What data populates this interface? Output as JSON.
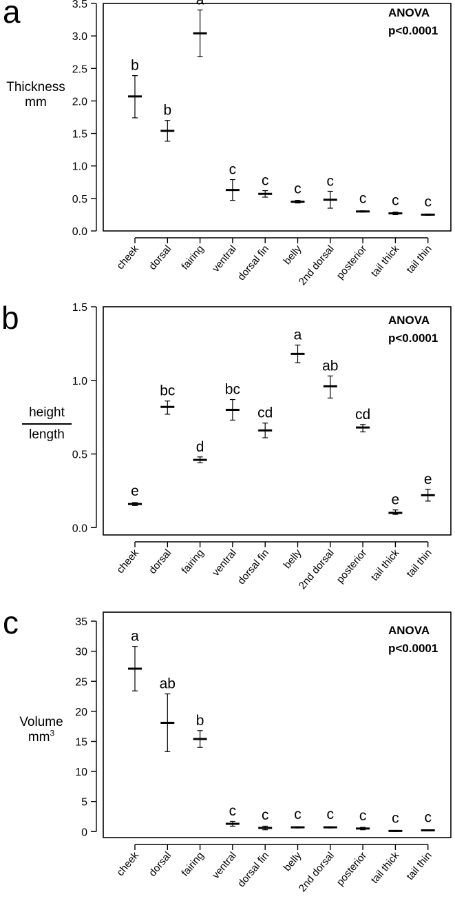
{
  "chart_data": [
    {
      "type": "errorbar",
      "panel_letter": "a",
      "stat_line1": "ANOVA",
      "stat_line2": "p<0.0001",
      "ylabel_line1": "Thickness",
      "ylabel_line2": "mm",
      "ylim": [
        0,
        3.5
      ],
      "yticks": [
        "0.0",
        "0.5",
        "1.0",
        "1.5",
        "2.0",
        "2.5",
        "3.0",
        "3.5"
      ],
      "categories": [
        "cheek",
        "dorsal",
        "fairing",
        "ventral",
        "dorsal fin",
        "belly",
        "2nd dorsal",
        "posterior",
        "tail thick",
        "tail thin"
      ],
      "means": [
        2.07,
        1.54,
        3.04,
        0.63,
        0.57,
        0.45,
        0.48,
        0.3,
        0.27,
        0.25
      ],
      "lower": [
        1.74,
        1.38,
        2.68,
        0.47,
        0.52,
        0.43,
        0.35,
        0.29,
        0.25,
        0.24
      ],
      "upper": [
        2.39,
        1.7,
        3.4,
        0.79,
        0.62,
        0.47,
        0.61,
        0.31,
        0.29,
        0.26
      ],
      "letters": [
        "b",
        "b",
        "a",
        "c",
        "c",
        "c",
        "c",
        "c",
        "c",
        "c"
      ]
    },
    {
      "type": "errorbar",
      "panel_letter": "b",
      "stat_line1": "ANOVA",
      "stat_line2": "p<0.0001",
      "ylabel_num": "height",
      "ylabel_den": "length",
      "ylim": [
        -0.05,
        1.5
      ],
      "yticks": [
        "0.0",
        "0.5",
        "1.0",
        "1.5"
      ],
      "categories": [
        "cheek",
        "dorsal",
        "fairing",
        "ventral",
        "dorsal fin",
        "belly",
        "2nd dorsal",
        "posterior",
        "tail thick",
        "tail thin"
      ],
      "means": [
        0.16,
        0.82,
        0.46,
        0.8,
        0.66,
        1.18,
        0.96,
        0.68,
        0.1,
        0.22
      ],
      "lower": [
        0.15,
        0.77,
        0.44,
        0.73,
        0.61,
        1.12,
        0.88,
        0.65,
        0.09,
        0.18
      ],
      "upper": [
        0.17,
        0.86,
        0.48,
        0.87,
        0.71,
        1.24,
        1.03,
        0.7,
        0.12,
        0.26
      ],
      "letters": [
        "e",
        "bc",
        "d",
        "bc",
        "cd",
        "a",
        "ab",
        "cd",
        "e",
        "e"
      ]
    },
    {
      "type": "errorbar",
      "panel_letter": "c",
      "stat_line1": "ANOVA",
      "stat_line2": "p<0.0001",
      "ylabel_line1": "Volume",
      "ylabel_line2": "mm",
      "ylabel_sup": "3",
      "ylim": [
        -1,
        36.5
      ],
      "yticks": [
        "0",
        "5",
        "10",
        "15",
        "20",
        "25",
        "30",
        "35"
      ],
      "categories": [
        "cheek",
        "dorsal",
        "fairing",
        "ventral",
        "dorsal fin",
        "belly",
        "2nd dorsal",
        "posterior",
        "tail thick",
        "tail thin"
      ],
      "means": [
        27.1,
        18.1,
        15.4,
        1.3,
        0.6,
        0.7,
        0.7,
        0.5,
        0.1,
        0.2
      ],
      "lower": [
        23.4,
        13.3,
        14.0,
        0.9,
        0.3,
        0.6,
        0.6,
        0.3,
        0.0,
        0.1
      ],
      "upper": [
        30.8,
        22.9,
        16.8,
        1.7,
        0.9,
        0.8,
        0.8,
        0.7,
        0.2,
        0.3
      ],
      "letters": [
        "a",
        "ab",
        "b",
        "c",
        "c",
        "c",
        "c",
        "c",
        "c",
        "c"
      ]
    }
  ]
}
